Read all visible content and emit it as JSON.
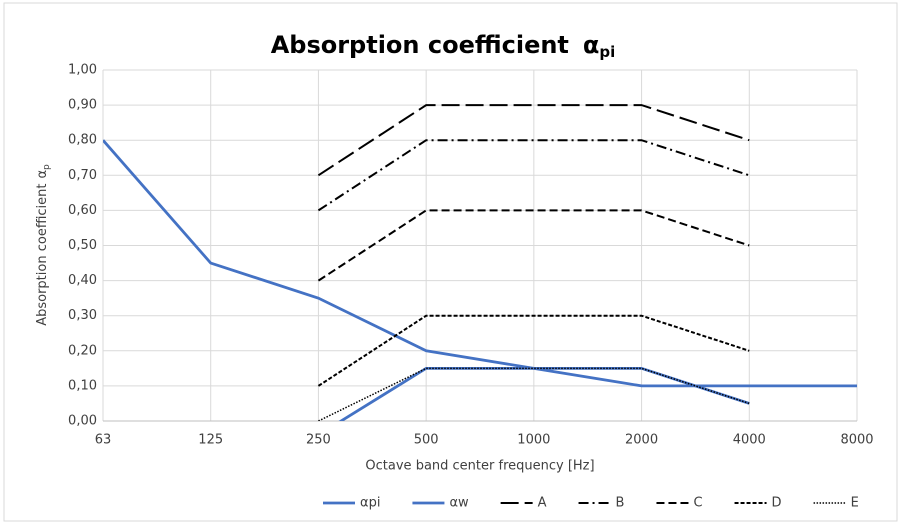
{
  "chart_data": {
    "type": "line",
    "title": "Absorption coefficient",
    "title_symbol": "α",
    "title_subscript": "pi",
    "x_label": "Octave band center frequency  [Hz]",
    "y_label": "Absorption coefficient",
    "y_label_symbol": "α",
    "y_label_subscript": "p",
    "categories": [
      "63",
      "125",
      "250",
      "500",
      "1000",
      "2000",
      "4000",
      "8000"
    ],
    "ylim": [
      0,
      1
    ],
    "yticks": [
      {
        "value": 0,
        "label": "0,00"
      },
      {
        "value": 0.1,
        "label": "0,10"
      },
      {
        "value": 0.2,
        "label": "0,20"
      },
      {
        "value": 0.3,
        "label": "0,30"
      },
      {
        "value": 0.4,
        "label": "0,40"
      },
      {
        "value": 0.5,
        "label": "0,50"
      },
      {
        "value": 0.6,
        "label": "0,60"
      },
      {
        "value": 0.7,
        "label": "0,70"
      },
      {
        "value": 0.8,
        "label": "0,80"
      },
      {
        "value": 0.9,
        "label": "0,90"
      },
      {
        "value": 1,
        "label": "1,00"
      }
    ],
    "grid": true,
    "legend": "bottom",
    "series": [
      {
        "name": "αpi",
        "color": "#4472c4",
        "style": "solid",
        "values": [
          0.8,
          0.45,
          0.35,
          0.2,
          0.15,
          0.1,
          0.1,
          0.1
        ]
      },
      {
        "name": "αw",
        "color": "#4472c4",
        "style": "solid",
        "values": [
          null,
          null,
          -0.04,
          0.15,
          0.15,
          0.15,
          0.05,
          null
        ]
      },
      {
        "name": "A",
        "color": "#000000",
        "style": "long-dash",
        "values": [
          null,
          null,
          0.7,
          0.9,
          0.9,
          0.9,
          0.8,
          null
        ]
      },
      {
        "name": "B",
        "color": "#000000",
        "style": "dash-dot",
        "values": [
          null,
          null,
          0.6,
          0.8,
          0.8,
          0.8,
          0.7,
          null
        ]
      },
      {
        "name": "C",
        "color": "#000000",
        "style": "dash",
        "values": [
          null,
          null,
          0.4,
          0.6,
          0.6,
          0.6,
          0.5,
          null
        ]
      },
      {
        "name": "D",
        "color": "#000000",
        "style": "short-dash",
        "values": [
          null,
          null,
          0.1,
          0.3,
          0.3,
          0.3,
          0.2,
          null
        ]
      },
      {
        "name": "E",
        "color": "#000000",
        "style": "dot",
        "values": [
          null,
          null,
          0,
          0.15,
          0.15,
          0.15,
          0.05,
          null
        ]
      }
    ]
  }
}
